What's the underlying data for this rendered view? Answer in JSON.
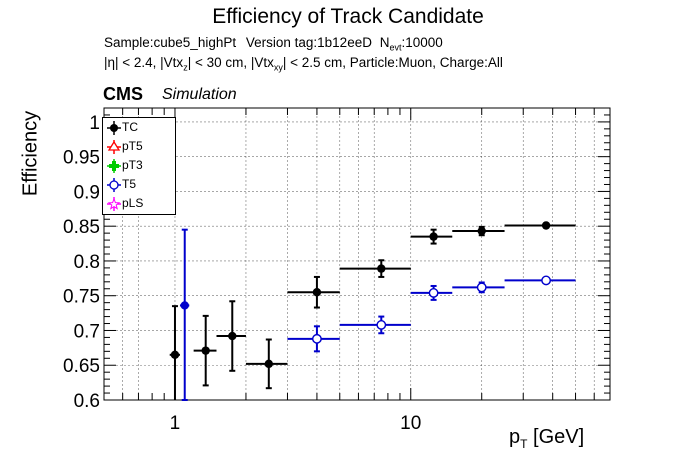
{
  "title": "Efficiency of Track Candidate",
  "info_line1": {
    "sample": "Sample:cube5_highPt",
    "version": "Version tag:1b12eeD",
    "nevt_label": "N",
    "nevt_sub": "evt",
    "nevt_value": ":10000"
  },
  "info_line2": {
    "eta": "|η| < 2.4, |Vtx",
    "z_sub": "z",
    "mid": "| < 30 cm, |Vtx",
    "xy_sub": "xy",
    "rest": "| < 2.5 cm, Particle:Muon, Charge:All"
  },
  "cms_label": "CMS",
  "sim_label": "Simulation",
  "legend": [
    {
      "name": "TC",
      "color": "#000000",
      "marker": "filled-circle"
    },
    {
      "name": "pT5",
      "color": "#ff0000",
      "marker": "open-triangle"
    },
    {
      "name": "pT3",
      "color": "#00cc00",
      "marker": "filled-cross"
    },
    {
      "name": "T5",
      "color": "#0000cc",
      "marker": "open-circle"
    },
    {
      "name": "pLS",
      "color": "#ff00ff",
      "marker": "open-star"
    }
  ],
  "chart_data": {
    "type": "scatter",
    "title": "Efficiency of Track Candidate",
    "xlabel": "p",
    "xlabel_sub": "T",
    "xlabel_unit": " [GeV]",
    "ylabel": "Efficiency",
    "xscale": "log",
    "xlim": [
      0.5,
      70
    ],
    "ylim": [
      0.6,
      1.02
    ],
    "grid": true,
    "legend_position": "top-left",
    "x_tick_labels": [
      {
        "value": 1,
        "label": "1"
      },
      {
        "value": 10,
        "label": "10"
      }
    ],
    "y_ticks": [
      0.6,
      0.65,
      0.7,
      0.75,
      0.8,
      0.85,
      0.9,
      0.95,
      1.0
    ],
    "y_tick_labels": [
      "0.6",
      "0.65",
      "0.7",
      "0.75",
      "0.8",
      "0.85",
      "0.9",
      "0.95",
      "1"
    ],
    "series": [
      {
        "name": "TC",
        "color": "#000000",
        "marker": "filled-circle",
        "points": [
          {
            "x": 1.0,
            "xlo": 0.95,
            "xhi": 1.05,
            "y": 0.665,
            "ylo": 0.595,
            "yhi": 0.735
          },
          {
            "x": 1.35,
            "xlo": 1.2,
            "xhi": 1.5,
            "y": 0.671,
            "ylo": 0.621,
            "yhi": 0.721
          },
          {
            "x": 1.75,
            "xlo": 1.5,
            "xhi": 2.0,
            "y": 0.692,
            "ylo": 0.642,
            "yhi": 0.742
          },
          {
            "x": 2.5,
            "xlo": 2.0,
            "xhi": 3.0,
            "y": 0.652,
            "ylo": 0.617,
            "yhi": 0.687
          },
          {
            "x": 4.0,
            "xlo": 3.0,
            "xhi": 5.0,
            "y": 0.755,
            "ylo": 0.733,
            "yhi": 0.777
          },
          {
            "x": 7.5,
            "xlo": 5.0,
            "xhi": 10.0,
            "y": 0.789,
            "ylo": 0.777,
            "yhi": 0.801
          },
          {
            "x": 12.5,
            "xlo": 10.0,
            "xhi": 15.0,
            "y": 0.835,
            "ylo": 0.825,
            "yhi": 0.845
          },
          {
            "x": 20.0,
            "xlo": 15.0,
            "xhi": 25.0,
            "y": 0.843,
            "ylo": 0.837,
            "yhi": 0.849
          },
          {
            "x": 37.5,
            "xlo": 25.0,
            "xhi": 50.0,
            "y": 0.851,
            "ylo": 0.848,
            "yhi": 0.854
          }
        ]
      },
      {
        "name": "pT5",
        "color": "#ff0000",
        "marker": "open-triangle",
        "points": []
      },
      {
        "name": "pT3",
        "color": "#00cc00",
        "marker": "filled-cross",
        "points": []
      },
      {
        "name": "T5",
        "color": "#0000cc",
        "marker": "open-circle",
        "points": [
          {
            "x": 1.1,
            "xlo": 1.05,
            "xhi": 1.15,
            "y": 0.736,
            "ylo": 0.6,
            "yhi": 0.845,
            "filled": true
          },
          {
            "x": 4.0,
            "xlo": 3.0,
            "xhi": 5.0,
            "y": 0.688,
            "ylo": 0.67,
            "yhi": 0.706
          },
          {
            "x": 7.5,
            "xlo": 5.0,
            "xhi": 10.0,
            "y": 0.708,
            "ylo": 0.696,
            "yhi": 0.72
          },
          {
            "x": 12.5,
            "xlo": 10.0,
            "xhi": 15.0,
            "y": 0.754,
            "ylo": 0.744,
            "yhi": 0.764
          },
          {
            "x": 20.0,
            "xlo": 15.0,
            "xhi": 25.0,
            "y": 0.762,
            "ylo": 0.755,
            "yhi": 0.769
          },
          {
            "x": 37.5,
            "xlo": 25.0,
            "xhi": 50.0,
            "y": 0.772,
            "ylo": 0.769,
            "yhi": 0.775
          }
        ]
      },
      {
        "name": "pLS",
        "color": "#ff00ff",
        "marker": "open-star",
        "points": []
      }
    ]
  }
}
